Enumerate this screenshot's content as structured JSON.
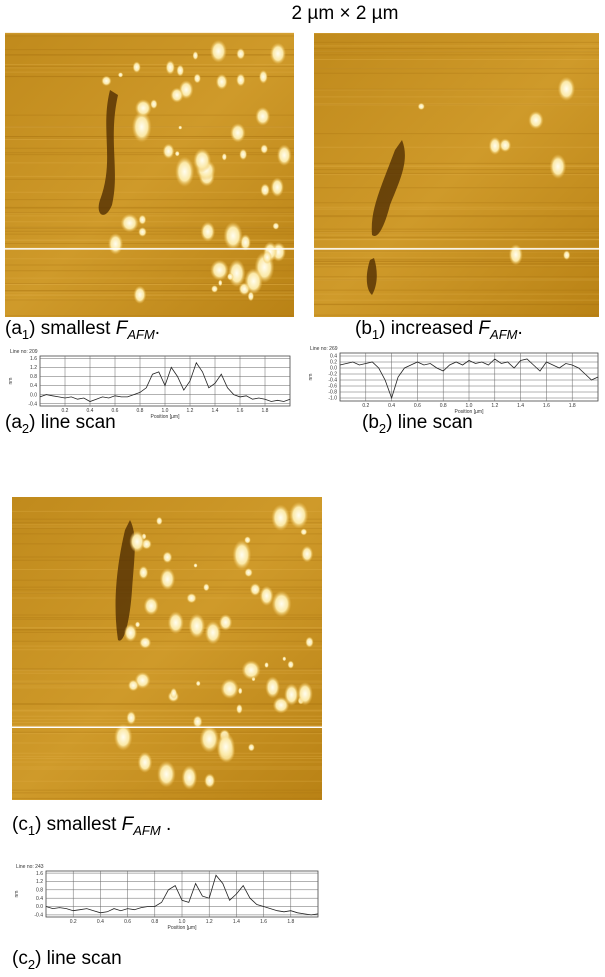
{
  "header": {
    "title": "2 µm × 2 µm"
  },
  "captions": [
    {
      "open": "(a",
      "index": "1",
      "text": ") smallest ",
      "symbol": "F",
      "symbol_sub": "AFM",
      "end": "."
    },
    {
      "open": "(b",
      "index": "1",
      "text": ") increased ",
      "symbol": "F",
      "symbol_sub": "AFM",
      "end": "."
    },
    {
      "open": "(a",
      "index": "2",
      "text": ")  line scan"
    },
    {
      "open": "(b",
      "index": "2",
      "text": ")  line scan"
    },
    {
      "open": "(c",
      "index": "1",
      "text": ")  smallest ",
      "symbol": "F",
      "symbol_sub": "AFM",
      "end": " ."
    },
    {
      "open": "(c",
      "index": "2",
      "text": ")  line scan"
    }
  ],
  "line_scans": [
    {
      "line_no": "Line no: 209",
      "y_label": "nm",
      "x_label": "Position [µm]",
      "xlim": [
        0,
        2
      ],
      "ylim": [
        -0.5,
        1.7
      ],
      "xticks": [
        0.2,
        0.4,
        0.6,
        0.8,
        {
          "value": 1,
          "label": "1.0"
        },
        1.2,
        1.4,
        1.6,
        1.8
      ],
      "yticks": [
        1.6,
        1.2,
        0.8,
        0.4,
        {
          "value": 0,
          "label": "0.0"
        },
        -0.4
      ],
      "x": [
        0,
        0.05,
        0.1,
        0.15,
        0.2,
        0.25,
        0.3,
        0.35,
        0.4,
        0.45,
        0.5,
        0.55,
        0.6,
        0.65,
        0.7,
        0.75,
        0.8,
        0.85,
        0.9,
        0.95,
        1,
        1.05,
        1.1,
        1.15,
        1.2,
        1.25,
        1.3,
        1.35,
        1.4,
        1.45,
        1.5,
        1.55,
        1.6,
        1.65,
        1.7,
        1.75,
        1.8,
        1.85,
        1.9,
        1.95,
        2
      ],
      "values": [
        -0.1,
        0,
        -0.05,
        -0.1,
        -0.15,
        -0.1,
        -0.2,
        -0.15,
        -0.3,
        -0.2,
        -0.1,
        -0.15,
        -0.05,
        -0.1,
        -0.1,
        0,
        0.1,
        0.3,
        0.9,
        1,
        0.4,
        1.2,
        0.8,
        0.2,
        0.6,
        1.4,
        1,
        0.3,
        0.5,
        0.9,
        0.3,
        0,
        -0.1,
        -0.05,
        -0.2,
        -0.15,
        -0.2,
        -0.3,
        -0.25,
        -0.3,
        -0.2
      ]
    },
    {
      "line_no": "Line no: 269",
      "y_label": "nm",
      "x_label": "Position [µm]",
      "xlim": [
        0,
        2
      ],
      "ylim": [
        -1.1,
        0.5
      ],
      "xticks": [
        0.2,
        0.4,
        0.6,
        0.8,
        {
          "value": 1,
          "label": "1.0"
        },
        1.2,
        1.4,
        1.6,
        1.8
      ],
      "yticks": [
        0.4,
        0.2,
        {
          "value": 0,
          "label": "0.0"
        },
        -0.2,
        -0.4,
        -0.6,
        -0.8,
        {
          "value": -1,
          "label": "-1.0"
        }
      ],
      "x": [
        0,
        0.05,
        0.1,
        0.15,
        0.2,
        0.25,
        0.3,
        0.35,
        0.4,
        0.45,
        0.5,
        0.55,
        0.6,
        0.65,
        0.7,
        0.75,
        0.8,
        0.85,
        0.9,
        0.95,
        1,
        1.05,
        1.1,
        1.15,
        1.2,
        1.25,
        1.3,
        1.35,
        1.4,
        1.45,
        1.5,
        1.55,
        1.6,
        1.65,
        1.7,
        1.75,
        1.8,
        1.85,
        1.9,
        1.95,
        2
      ],
      "values": [
        0.1,
        0.15,
        0.2,
        0.1,
        0.15,
        0.2,
        0,
        -0.4,
        -1,
        -0.3,
        0,
        0.1,
        0.2,
        0.1,
        0.15,
        0,
        -0.1,
        0.1,
        0.2,
        0.1,
        0.25,
        0.15,
        0.2,
        0.1,
        0.3,
        0.15,
        0.2,
        0,
        0.25,
        0.3,
        0.1,
        -0.1,
        0.2,
        0.1,
        0,
        0.15,
        0.1,
        0,
        -0.2,
        -0.4,
        -0.3
      ]
    },
    {
      "line_no": "Line no: 243",
      "y_label": "nm",
      "x_label": "Position [µm]",
      "xlim": [
        0,
        2
      ],
      "ylim": [
        -0.5,
        1.7
      ],
      "xticks": [
        0.2,
        0.4,
        0.6,
        0.8,
        {
          "value": 1,
          "label": "1.0"
        },
        1.2,
        1.4,
        1.6,
        1.8
      ],
      "yticks": [
        1.6,
        1.2,
        0.8,
        0.4,
        {
          "value": 0,
          "label": "0.0"
        },
        -0.4
      ],
      "x": [
        0,
        0.05,
        0.1,
        0.15,
        0.2,
        0.25,
        0.3,
        0.35,
        0.4,
        0.45,
        0.5,
        0.55,
        0.6,
        0.65,
        0.7,
        0.75,
        0.8,
        0.85,
        0.9,
        0.95,
        1,
        1.05,
        1.1,
        1.15,
        1.2,
        1.25,
        1.3,
        1.35,
        1.4,
        1.45,
        1.5,
        1.55,
        1.6,
        1.65,
        1.7,
        1.75,
        1.8,
        1.85,
        1.9,
        1.95,
        2
      ],
      "values": [
        0,
        -0.1,
        -0.05,
        -0.1,
        -0.2,
        -0.15,
        -0.1,
        -0.2,
        -0.3,
        -0.25,
        -0.1,
        -0.2,
        -0.1,
        -0.15,
        -0.05,
        0,
        0,
        0.2,
        0.8,
        1,
        0.3,
        0.2,
        1.1,
        0.5,
        0.4,
        1.5,
        1.1,
        0.3,
        0.6,
        1,
        0.4,
        0.1,
        0,
        -0.1,
        -0.2,
        -0.25,
        -0.2,
        -0.3,
        -0.35,
        -0.4,
        -0.35
      ]
    }
  ]
}
